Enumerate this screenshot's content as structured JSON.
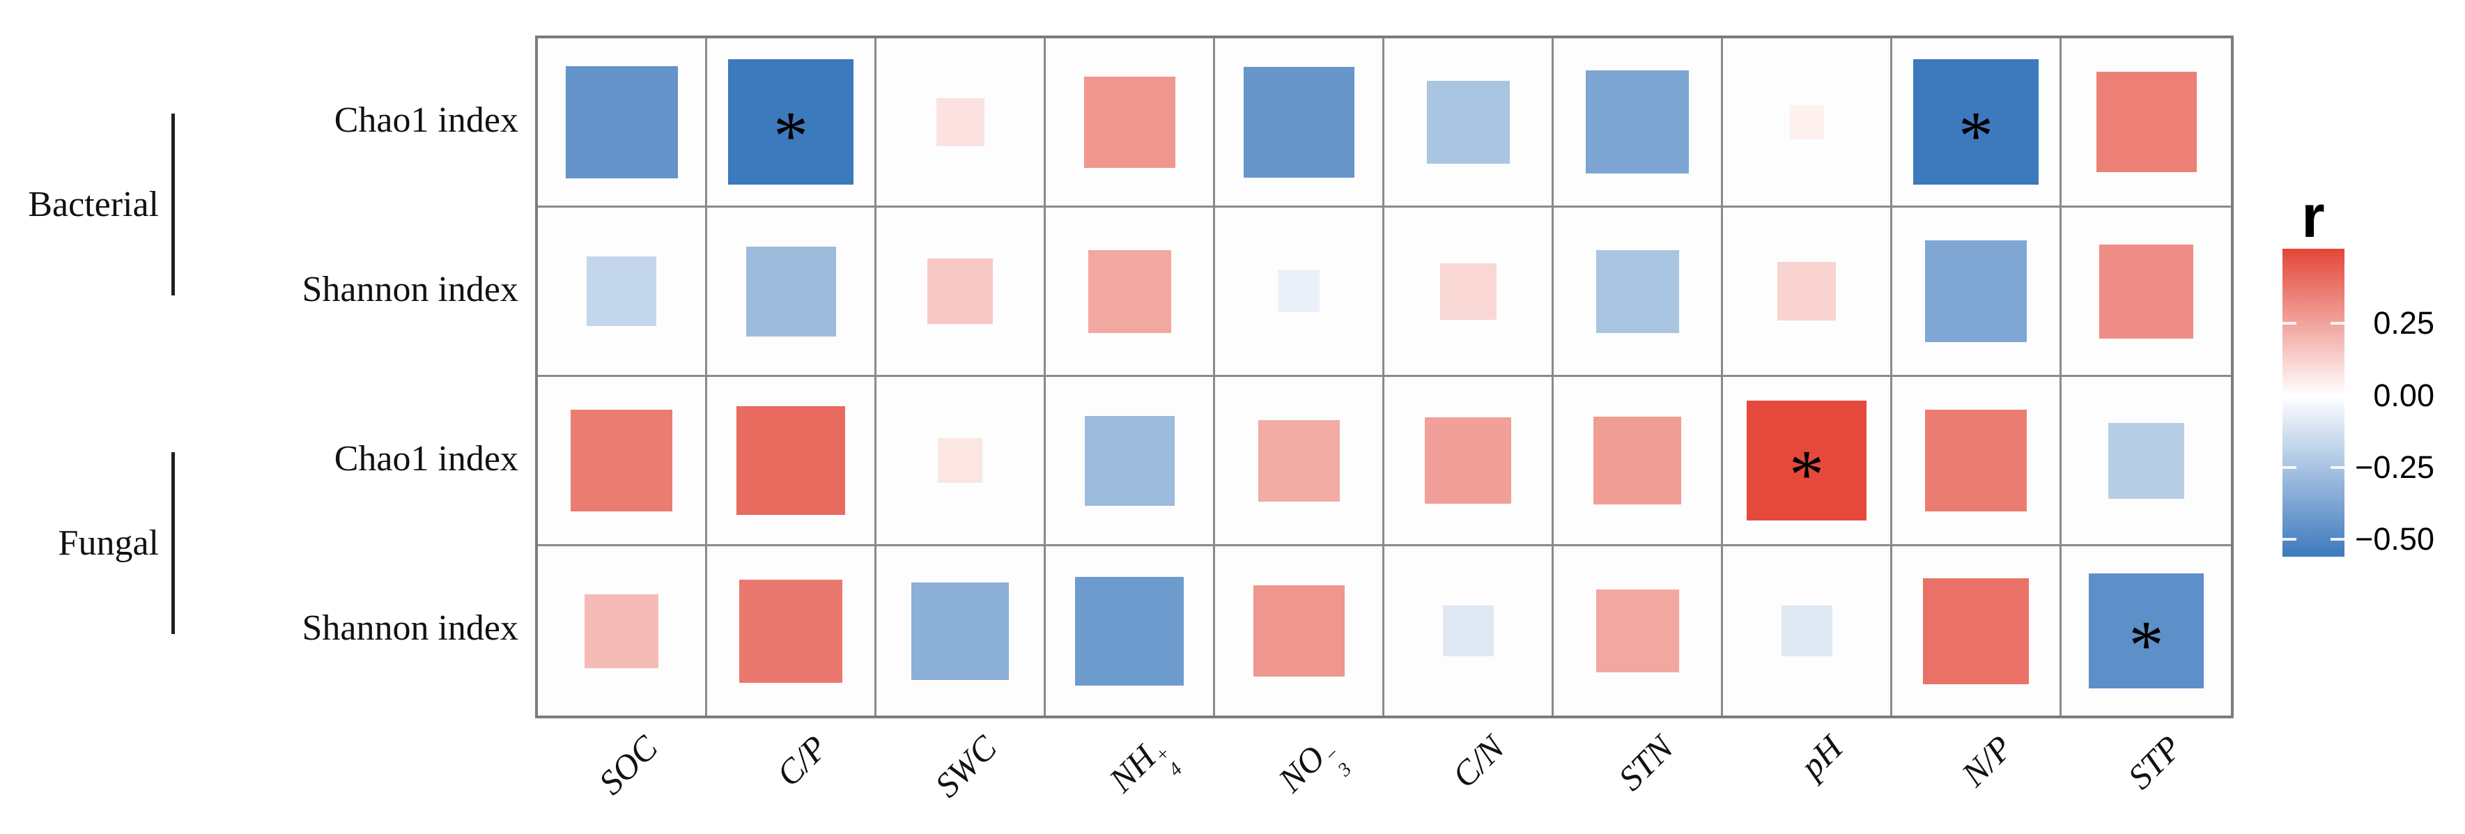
{
  "figure": {
    "background_color": "#ffffff",
    "description": "Square-heatmap of Pearson correlations (r) between microbial diversity indices and soil properties"
  },
  "chart_data": {
    "type": "heatmap",
    "title": "",
    "x_labels_plain": [
      "SOC",
      "C/P",
      "SWC",
      "NH4+",
      "NO3-",
      "C/N",
      "STN",
      "pH",
      "N/P",
      "STP"
    ],
    "x_categories": [
      {
        "text": "SOC",
        "sub": "",
        "sup": ""
      },
      {
        "text": "C/P",
        "sub": "",
        "sup": ""
      },
      {
        "text": "SWC",
        "sub": "",
        "sup": ""
      },
      {
        "text": "NH",
        "sub": "4",
        "sup": "+"
      },
      {
        "text": "NO",
        "sub": "3",
        "sup": "−"
      },
      {
        "text": "C/N",
        "sub": "",
        "sup": ""
      },
      {
        "text": "STN",
        "sub": "",
        "sup": ""
      },
      {
        "text": "pH",
        "sub": "",
        "sup": ""
      },
      {
        "text": "N/P",
        "sub": "",
        "sup": ""
      },
      {
        "text": "STP",
        "sub": "",
        "sup": ""
      }
    ],
    "row_groups": [
      {
        "label": "Bacterial",
        "rows": [
          0,
          1
        ]
      },
      {
        "label": "Fungal",
        "rows": [
          2,
          3
        ]
      }
    ],
    "rows": [
      {
        "group": "Bacterial",
        "label": "Chao1 index",
        "r": [
          -0.44,
          -0.55,
          0.08,
          0.29,
          -0.43,
          -0.24,
          -0.37,
          0.04,
          -0.55,
          0.35
        ],
        "sig": [
          false,
          true,
          false,
          false,
          false,
          false,
          false,
          false,
          true,
          false
        ]
      },
      {
        "group": "Bacterial",
        "label": "Shannon index",
        "r": [
          -0.17,
          -0.28,
          0.15,
          0.24,
          -0.06,
          0.11,
          -0.24,
          0.12,
          -0.36,
          0.31
        ],
        "sig": [
          false,
          false,
          false,
          false,
          false,
          false,
          false,
          false,
          false,
          false
        ]
      },
      {
        "group": "Fungal",
        "label": "Chao1 index",
        "r": [
          0.36,
          0.41,
          0.07,
          -0.28,
          0.23,
          0.26,
          0.27,
          0.5,
          0.36,
          -0.2
        ],
        "sig": [
          false,
          false,
          false,
          false,
          false,
          false,
          false,
          true,
          false,
          false
        ]
      },
      {
        "group": "Fungal",
        "label": "Shannon index",
        "r": [
          0.19,
          0.37,
          -0.33,
          -0.41,
          0.29,
          -0.09,
          0.24,
          -0.09,
          0.39,
          -0.46
        ],
        "sig": [
          false,
          false,
          false,
          false,
          false,
          false,
          false,
          false,
          false,
          true
        ]
      }
    ],
    "significance_marker": "*",
    "scale": {
      "max_abs": 0.55,
      "positive_color": "#e13728",
      "zero_color": "#ffffff",
      "negative_color": "#3d79bd"
    },
    "legend": {
      "title": "r",
      "top_value": 0.51,
      "bottom_value": -0.56,
      "ticks": [
        {
          "label": "0.25",
          "value": 0.25
        },
        {
          "label": "0.00",
          "value": 0.0
        },
        {
          "label": "−0.25",
          "value": -0.25
        },
        {
          "label": "−0.50",
          "value": -0.5
        }
      ]
    },
    "layout_hints": {
      "grid": "on",
      "legend_position": "right",
      "square_size_encodes": "abs(r)",
      "color_encodes": "sign and magnitude of r"
    }
  }
}
